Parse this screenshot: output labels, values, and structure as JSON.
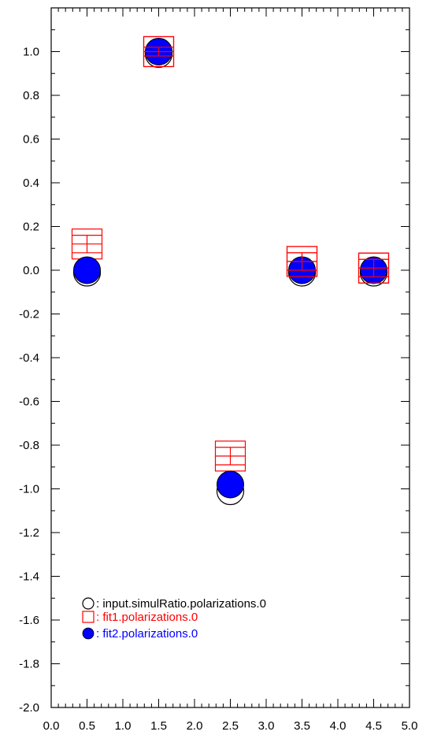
{
  "chart_data": {
    "type": "scatter",
    "title": "",
    "xlabel": "",
    "ylabel": "",
    "xlim": [
      0.0,
      5.0
    ],
    "ylim": [
      -2.0,
      1.2
    ],
    "grid": false,
    "legend_position": "bottom-left",
    "x_ticks": [
      "0.0",
      "0.5",
      "1.0",
      "1.5",
      "2.0",
      "2.5",
      "3.0",
      "3.5",
      "4.0",
      "4.5",
      "5.0"
    ],
    "y_ticks": [
      "1.0",
      "0.8",
      "0.6",
      "0.4",
      "0.2",
      "0.0",
      "-0.2",
      "-0.4",
      "-0.6",
      "-0.8",
      "-1.0",
      "-1.2",
      "-1.4",
      "-1.6",
      "-1.8",
      "-2.0"
    ],
    "series": [
      {
        "name": "input.simulRatio.polarizations.0",
        "legend_label": ": input.simulRatio.polarizations.0",
        "marker": "open-circle",
        "color": "#000000",
        "x": [
          0.5,
          1.5,
          2.5,
          3.5,
          4.5
        ],
        "y": [
          0.0,
          1.0,
          -1.0,
          0.0,
          0.0
        ]
      },
      {
        "name": "fit1.polarizations.0",
        "legend_label": ": fit1.polarizations.0",
        "marker": "open-square-errorbar",
        "color": "#ff0000",
        "x": [
          0.5,
          1.5,
          2.5,
          3.5,
          4.5
        ],
        "y": [
          0.12,
          1.0,
          -0.85,
          0.04,
          0.01
        ],
        "yerr": [
          0.04,
          0.02,
          0.04,
          0.04,
          0.04
        ]
      },
      {
        "name": "fit2.polarizations.0",
        "legend_label": ": fit2.polarizations.0",
        "marker": "filled-circle",
        "color": "#0000ff",
        "x": [
          0.5,
          1.5,
          2.5,
          3.5,
          4.5
        ],
        "y": [
          0.0,
          1.0,
          -0.98,
          0.0,
          0.0
        ]
      }
    ]
  }
}
